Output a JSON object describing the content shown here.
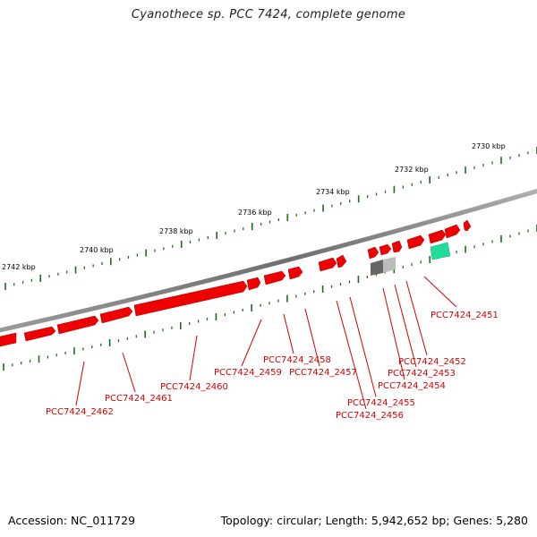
{
  "title": "Cyanothece sp. PCC 7424, complete genome",
  "footer": {
    "accession": "Accession: NC_011729",
    "summary": "Topology: circular; Length: 5,942,652 bp; Genes: 5,280"
  },
  "colors": {
    "backbone": "#808080",
    "gene_forward": "#ee0000",
    "gene_other": "#999999",
    "rna": "#22dd99",
    "tick": "#1a6e1a",
    "label": "#d40000"
  },
  "scale_labels": [
    "2742 kbp",
    "2740 kbp",
    "2738 kbp",
    "2736 kbp",
    "2734 kbp",
    "2732 kbp",
    "2730 kbp"
  ],
  "gene_labels": [
    "PCC7424_2451",
    "PCC7424_2452",
    "PCC7424_2453",
    "PCC7424_2454",
    "PCC7424_2455",
    "PCC7424_2456",
    "PCC7424_2457",
    "PCC7424_2458",
    "PCC7424_2459",
    "PCC7424_2460",
    "PCC7424_2461",
    "PCC7424_2462"
  ]
}
